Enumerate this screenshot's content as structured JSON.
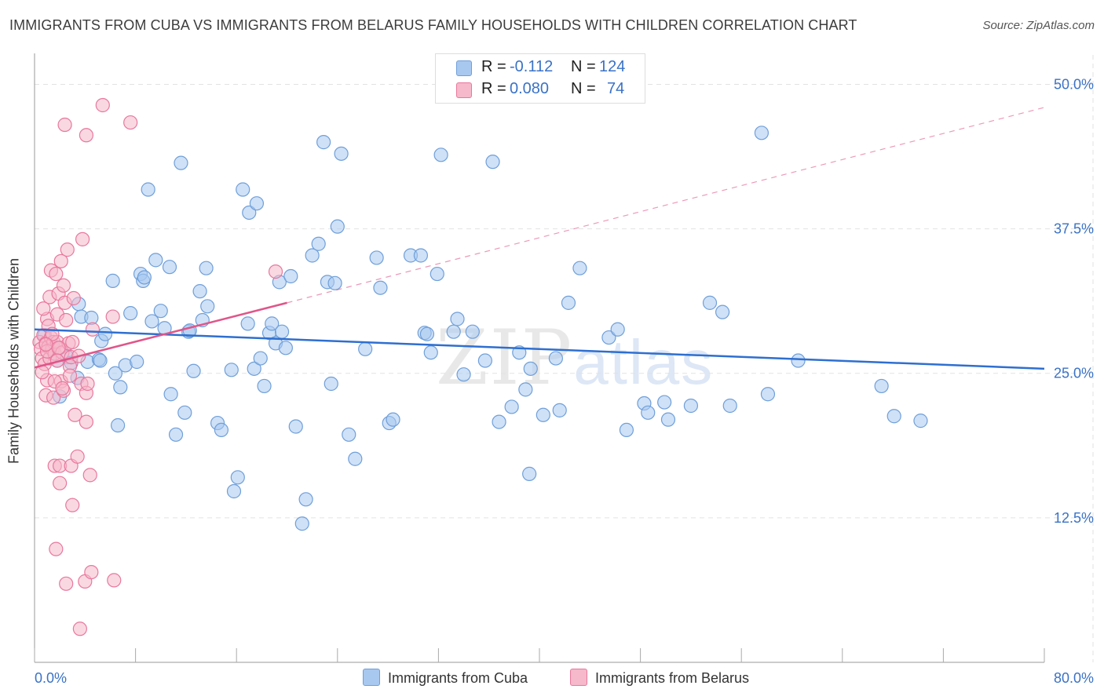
{
  "title": "IMMIGRANTS FROM CUBA VS IMMIGRANTS FROM BELARUS FAMILY HOUSEHOLDS WITH CHILDREN CORRELATION CHART",
  "source": "Source: ZipAtlas.com",
  "watermark": {
    "zip": "ZIP",
    "atlas": "atlas"
  },
  "legend": {
    "r_label": "R =",
    "n_label": "N =",
    "cuba": {
      "r": "-0.112",
      "n": "124"
    },
    "belarus": {
      "r": "0.080",
      "n": "74"
    }
  },
  "colors": {
    "cuba_fill": "#a8c8f0",
    "cuba_stroke": "#6f9fd9",
    "cuba_line": "#2e6fd0",
    "belarus_fill": "#f6b8cb",
    "belarus_stroke": "#e8789d",
    "belarus_line": "#e05588",
    "grid": "#e2e2e2",
    "tick_label": "#3a72c6"
  },
  "chart_data": {
    "type": "scatter",
    "title": "IMMIGRANTS FROM CUBA VS IMMIGRANTS FROM BELARUS FAMILY HOUSEHOLDS WITH CHILDREN CORRELATION CHART",
    "xlabel": "",
    "ylabel": "Family Households with Children",
    "xlim": [
      0,
      80
    ],
    "ylim": [
      0,
      52
    ],
    "x_tick_labels": [
      "0.0%",
      "80.0%"
    ],
    "y_ticks": [
      12.5,
      25.0,
      37.5,
      50.0
    ],
    "y_tick_labels": [
      "12.5%",
      "25.0%",
      "37.5%",
      "50.0%"
    ],
    "legend_position": "top-center",
    "series": [
      {
        "name": "Immigrants from Cuba",
        "trend": {
          "x": [
            0,
            80
          ],
          "y": [
            28.8,
            25.4
          ],
          "style": "solid"
        },
        "points": [
          [
            0.8,
            28.3
          ],
          [
            1.5,
            27.2
          ],
          [
            1.8,
            26.1
          ],
          [
            2,
            23
          ],
          [
            2.6,
            26.4
          ],
          [
            2.9,
            25.9
          ],
          [
            3.4,
            24.6
          ],
          [
            3.5,
            31
          ],
          [
            3.7,
            29.9
          ],
          [
            4.2,
            26
          ],
          [
            4.5,
            29.8
          ],
          [
            5.1,
            26.2
          ],
          [
            5.2,
            26.1
          ],
          [
            5.3,
            27.8
          ],
          [
            5.6,
            28.4
          ],
          [
            6.2,
            33
          ],
          [
            6.4,
            25
          ],
          [
            6.6,
            20.5
          ],
          [
            6.8,
            23.8
          ],
          [
            7.2,
            25.7
          ],
          [
            7.6,
            30.2
          ],
          [
            8.1,
            26
          ],
          [
            8.4,
            33.6
          ],
          [
            8.6,
            33
          ],
          [
            8.7,
            33.3
          ],
          [
            9,
            40.9
          ],
          [
            9.3,
            29.5
          ],
          [
            9.6,
            34.8
          ],
          [
            10,
            30.4
          ],
          [
            10.3,
            28.9
          ],
          [
            10.7,
            34.2
          ],
          [
            10.8,
            23.2
          ],
          [
            11.2,
            19.7
          ],
          [
            11.6,
            43.2
          ],
          [
            11.9,
            21.6
          ],
          [
            12.2,
            28.6
          ],
          [
            12.3,
            28.7
          ],
          [
            12.6,
            25.2
          ],
          [
            13.1,
            32.1
          ],
          [
            13.3,
            29.6
          ],
          [
            13.6,
            34.1
          ],
          [
            13.7,
            30.8
          ],
          [
            14.5,
            20.7
          ],
          [
            14.8,
            20.1
          ],
          [
            15.6,
            25.3
          ],
          [
            15.8,
            14.8
          ],
          [
            16.1,
            16
          ],
          [
            16.5,
            40.9
          ],
          [
            16.9,
            29.3
          ],
          [
            17,
            38.9
          ],
          [
            17.4,
            25.4
          ],
          [
            17.6,
            39.7
          ],
          [
            17.9,
            26.3
          ],
          [
            18.2,
            23.9
          ],
          [
            18.6,
            28.5
          ],
          [
            18.8,
            29.3
          ],
          [
            19.1,
            27.6
          ],
          [
            19.4,
            32.9
          ],
          [
            19.6,
            28.6
          ],
          [
            19.9,
            27.2
          ],
          [
            20.3,
            33.4
          ],
          [
            20.7,
            20.4
          ],
          [
            21.2,
            12
          ],
          [
            21.5,
            14.1
          ],
          [
            22,
            35.2
          ],
          [
            22.5,
            36.2
          ],
          [
            22.9,
            45
          ],
          [
            23.2,
            32.9
          ],
          [
            23.5,
            24.1
          ],
          [
            23.8,
            32.8
          ],
          [
            24,
            37.7
          ],
          [
            24.3,
            44
          ],
          [
            24.9,
            19.7
          ],
          [
            25.4,
            17.6
          ],
          [
            26.2,
            27.1
          ],
          [
            27.1,
            35
          ],
          [
            27.4,
            32.4
          ],
          [
            28.1,
            20.7
          ],
          [
            28.4,
            21
          ],
          [
            29.8,
            35.2
          ],
          [
            30.6,
            35.2
          ],
          [
            30.9,
            28.5
          ],
          [
            31.1,
            28.4
          ],
          [
            31.4,
            26.8
          ],
          [
            31.9,
            33.6
          ],
          [
            32.2,
            43.9
          ],
          [
            33.2,
            28.6
          ],
          [
            33.5,
            29.7
          ],
          [
            34,
            24.9
          ],
          [
            34.7,
            28.6
          ],
          [
            35.7,
            26.1
          ],
          [
            36.3,
            43.3
          ],
          [
            36.8,
            20.8
          ],
          [
            37.8,
            22.1
          ],
          [
            38.4,
            26.8
          ],
          [
            38.9,
            23.6
          ],
          [
            39.2,
            16.3
          ],
          [
            39.3,
            25.4
          ],
          [
            40.3,
            21.4
          ],
          [
            41.3,
            26.3
          ],
          [
            41.6,
            21.8
          ],
          [
            42.3,
            31.1
          ],
          [
            43.2,
            34.1
          ],
          [
            45.5,
            28.1
          ],
          [
            46.2,
            28.8
          ],
          [
            46.9,
            20.1
          ],
          [
            48.3,
            22.4
          ],
          [
            48.6,
            21.6
          ],
          [
            49.9,
            22.5
          ],
          [
            50.2,
            21
          ],
          [
            52,
            22.2
          ],
          [
            53.5,
            31.1
          ],
          [
            54.5,
            30.3
          ],
          [
            55.1,
            22.2
          ],
          [
            57.6,
            45.8
          ],
          [
            58.1,
            23.2
          ],
          [
            60.5,
            26.1
          ],
          [
            67.1,
            23.9
          ],
          [
            68.1,
            21.3
          ],
          [
            70.2,
            20.9
          ]
        ]
      },
      {
        "name": "Immigrants from Belarus",
        "trend": {
          "x": [
            0,
            20
          ],
          "y": [
            25.5,
            31.1
          ],
          "style": "solid"
        },
        "trend_extension": {
          "x": [
            20,
            80
          ],
          "y": [
            31.1,
            48
          ],
          "style": "dashed"
        },
        "points": [
          [
            0.4,
            27.7
          ],
          [
            0.5,
            27.1
          ],
          [
            0.6,
            26.3
          ],
          [
            0.7,
            28.3
          ],
          [
            0.8,
            25.8
          ],
          [
            0.9,
            27.6
          ],
          [
            0.9,
            23.1
          ],
          [
            1,
            24.4
          ],
          [
            1,
            29.7
          ],
          [
            1.1,
            27.3
          ],
          [
            1.1,
            29.1
          ],
          [
            1.2,
            26.3
          ],
          [
            1.2,
            31.6
          ],
          [
            1.3,
            28.1
          ],
          [
            1.3,
            33.9
          ],
          [
            1.4,
            27.1
          ],
          [
            1.5,
            27.7
          ],
          [
            1.5,
            22.9
          ],
          [
            1.6,
            17
          ],
          [
            1.6,
            26.7
          ],
          [
            1.7,
            9.8
          ],
          [
            1.7,
            33.6
          ],
          [
            1.8,
            30.1
          ],
          [
            1.8,
            27.7
          ],
          [
            1.9,
            31.9
          ],
          [
            2,
            15.5
          ],
          [
            2,
            27.2
          ],
          [
            2,
            17
          ],
          [
            2.1,
            24.3
          ],
          [
            2.1,
            34.7
          ],
          [
            2.2,
            26.8
          ],
          [
            2.3,
            23.5
          ],
          [
            2.3,
            32.6
          ],
          [
            2.4,
            46.5
          ],
          [
            2.4,
            31.1
          ],
          [
            2.5,
            6.8
          ],
          [
            2.6,
            35.7
          ],
          [
            2.7,
            27.6
          ],
          [
            2.8,
            25.6
          ],
          [
            2.8,
            24.8
          ],
          [
            2.9,
            17
          ],
          [
            2.9,
            26.4
          ],
          [
            3,
            13.6
          ],
          [
            3.1,
            31.5
          ],
          [
            3.2,
            21.4
          ],
          [
            3.4,
            17.8
          ],
          [
            3.5,
            26.5
          ],
          [
            3.6,
            2.9
          ],
          [
            3.7,
            24.1
          ],
          [
            3.8,
            36.6
          ],
          [
            4,
            7
          ],
          [
            4.1,
            20.8
          ],
          [
            4.1,
            23.3
          ],
          [
            4.1,
            45.6
          ],
          [
            4.2,
            24.1
          ],
          [
            4.4,
            16.2
          ],
          [
            4.5,
            7.8
          ],
          [
            4.6,
            28.8
          ],
          [
            5.4,
            48.2
          ],
          [
            6.2,
            29.9
          ],
          [
            6.3,
            7.1
          ],
          [
            7.6,
            46.7
          ],
          [
            19.1,
            33.8
          ],
          [
            0.6,
            25.1
          ],
          [
            1,
            26.9
          ],
          [
            1.4,
            28.4
          ],
          [
            1.9,
            27.2
          ],
          [
            2.5,
            29.6
          ],
          [
            0.7,
            30.6
          ],
          [
            1.6,
            24.3
          ],
          [
            2.2,
            23.7
          ],
          [
            3,
            27.7
          ],
          [
            0.9,
            27.5
          ],
          [
            1.8,
            26.1
          ]
        ]
      }
    ]
  },
  "bottom_legend": {
    "cuba": "Immigrants from Cuba",
    "belarus": "Immigrants from Belarus"
  }
}
